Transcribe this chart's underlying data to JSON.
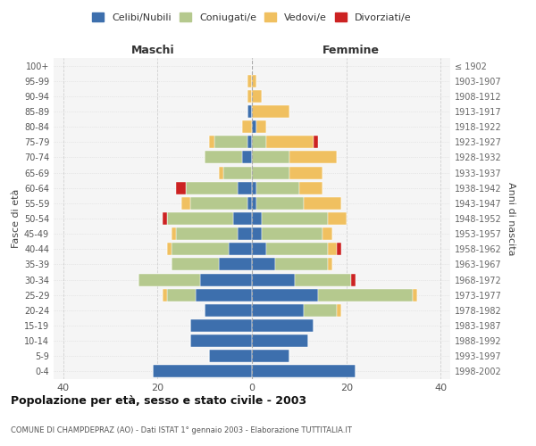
{
  "age_groups": [
    "0-4",
    "5-9",
    "10-14",
    "15-19",
    "20-24",
    "25-29",
    "30-34",
    "35-39",
    "40-44",
    "45-49",
    "50-54",
    "55-59",
    "60-64",
    "65-69",
    "70-74",
    "75-79",
    "80-84",
    "85-89",
    "90-94",
    "95-99",
    "100+"
  ],
  "birth_years": [
    "1998-2002",
    "1993-1997",
    "1988-1992",
    "1983-1987",
    "1978-1982",
    "1973-1977",
    "1968-1972",
    "1963-1967",
    "1958-1962",
    "1953-1957",
    "1948-1952",
    "1943-1947",
    "1938-1942",
    "1933-1937",
    "1928-1932",
    "1923-1927",
    "1918-1922",
    "1913-1917",
    "1908-1912",
    "1903-1907",
    "≤ 1902"
  ],
  "male": {
    "celibi": [
      21,
      9,
      13,
      13,
      10,
      12,
      11,
      7,
      5,
      3,
      4,
      1,
      3,
      0,
      2,
      1,
      0,
      1,
      0,
      0,
      0
    ],
    "coniugati": [
      0,
      0,
      0,
      0,
      0,
      6,
      13,
      10,
      12,
      13,
      14,
      12,
      11,
      6,
      8,
      7,
      0,
      0,
      0,
      0,
      0
    ],
    "vedovi": [
      0,
      0,
      0,
      0,
      0,
      1,
      0,
      0,
      1,
      1,
      0,
      2,
      0,
      1,
      0,
      1,
      2,
      0,
      1,
      1,
      0
    ],
    "divorziati": [
      0,
      0,
      0,
      0,
      0,
      0,
      0,
      0,
      0,
      0,
      1,
      0,
      2,
      0,
      0,
      0,
      0,
      0,
      0,
      0,
      0
    ]
  },
  "female": {
    "nubili": [
      22,
      8,
      12,
      13,
      11,
      14,
      9,
      5,
      3,
      2,
      2,
      1,
      1,
      0,
      0,
      0,
      1,
      0,
      0,
      0,
      0
    ],
    "coniugate": [
      0,
      0,
      0,
      0,
      7,
      20,
      12,
      11,
      13,
      13,
      14,
      10,
      9,
      8,
      8,
      3,
      0,
      0,
      0,
      0,
      0
    ],
    "vedove": [
      0,
      0,
      0,
      0,
      1,
      1,
      0,
      1,
      2,
      2,
      4,
      8,
      5,
      7,
      10,
      10,
      2,
      8,
      2,
      1,
      0
    ],
    "divorziate": [
      0,
      0,
      0,
      0,
      0,
      0,
      1,
      0,
      1,
      0,
      0,
      0,
      0,
      0,
      0,
      1,
      0,
      0,
      0,
      0,
      0
    ]
  },
  "colors": {
    "celibi_nubili": "#3d6fad",
    "coniugati": "#b5c98e",
    "vedovi": "#f0c060",
    "divorziati": "#cc2222"
  },
  "xlim": 42,
  "title": "Popolazione per età, sesso e stato civile - 2003",
  "subtitle": "COMUNE DI CHAMPDEPRAZ (AO) - Dati ISTAT 1° gennaio 2003 - Elaborazione TUTTITALIA.IT",
  "ylabel_left": "Fasce di età",
  "ylabel_right": "Anni di nascita",
  "xlabel_left": "Maschi",
  "xlabel_right": "Femmine",
  "bg_color": "#f5f5f5",
  "grid_color": "#cccccc"
}
